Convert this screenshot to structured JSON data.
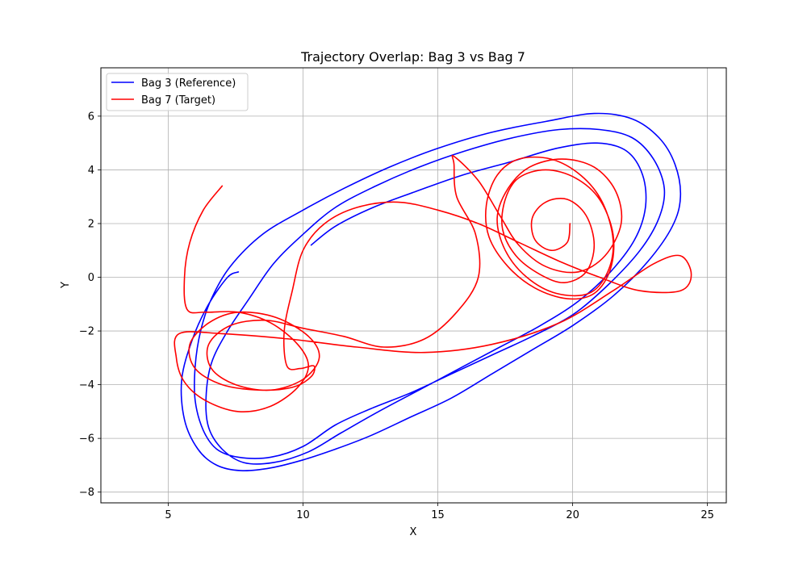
{
  "chart_data": {
    "type": "line",
    "title": "Trajectory Overlap: Bag 3 vs Bag 7",
    "xlabel": "X",
    "ylabel": "Y",
    "xlim": [
      2.5,
      25.7
    ],
    "ylim": [
      -8.4,
      7.8
    ],
    "xticks": [
      5,
      10,
      15,
      20,
      25
    ],
    "yticks": [
      -8,
      -6,
      -4,
      -2,
      0,
      2,
      4,
      6
    ],
    "xtick_labels": [
      "5",
      "10",
      "15",
      "20",
      "25"
    ],
    "ytick_labels": [
      "−8",
      "−6",
      "−4",
      "−2",
      "0",
      "2",
      "4",
      "6"
    ],
    "grid": true,
    "legend_position": "upper-left",
    "series": [
      {
        "name": "Bag 3 (Reference)",
        "color": "#0000ff",
        "points": [
          [
            7.6,
            0.2
          ],
          [
            7.2,
            0.0
          ],
          [
            6.5,
            -1.0
          ],
          [
            5.9,
            -2.3
          ],
          [
            5.5,
            -3.8
          ],
          [
            5.6,
            -5.3
          ],
          [
            6.1,
            -6.4
          ],
          [
            6.8,
            -7.0
          ],
          [
            7.7,
            -7.2
          ],
          [
            8.8,
            -7.1
          ],
          [
            10.0,
            -6.8
          ],
          [
            11.2,
            -6.4
          ],
          [
            12.5,
            -5.9
          ],
          [
            14.0,
            -5.2
          ],
          [
            15.5,
            -4.5
          ],
          [
            17.0,
            -3.6
          ],
          [
            18.5,
            -2.7
          ],
          [
            20.0,
            -1.8
          ],
          [
            21.5,
            -0.7
          ],
          [
            22.8,
            0.6
          ],
          [
            23.7,
            1.9
          ],
          [
            24.0,
            3.0
          ],
          [
            23.8,
            4.2
          ],
          [
            23.2,
            5.2
          ],
          [
            22.2,
            5.9
          ],
          [
            20.8,
            6.1
          ],
          [
            19.0,
            5.8
          ],
          [
            17.0,
            5.4
          ],
          [
            15.0,
            4.8
          ],
          [
            13.2,
            4.1
          ],
          [
            11.5,
            3.3
          ],
          [
            10.0,
            2.5
          ],
          [
            8.5,
            1.6
          ],
          [
            7.3,
            0.4
          ],
          [
            6.6,
            -0.8
          ],
          [
            6.2,
            -2.0
          ],
          [
            6.0,
            -3.3
          ],
          [
            6.0,
            -4.6
          ],
          [
            6.3,
            -5.7
          ],
          [
            6.8,
            -6.4
          ],
          [
            7.6,
            -6.7
          ],
          [
            8.8,
            -6.7
          ],
          [
            10.0,
            -6.3
          ],
          [
            11.2,
            -5.5
          ],
          [
            12.5,
            -4.9
          ],
          [
            14.0,
            -4.3
          ],
          [
            15.5,
            -3.6
          ],
          [
            17.0,
            -2.9
          ],
          [
            18.5,
            -2.2
          ],
          [
            20.0,
            -1.4
          ],
          [
            21.3,
            -0.3
          ],
          [
            22.5,
            1.0
          ],
          [
            23.2,
            2.2
          ],
          [
            23.4,
            3.3
          ],
          [
            23.0,
            4.4
          ],
          [
            22.2,
            5.2
          ],
          [
            21.0,
            5.5
          ],
          [
            19.5,
            5.5
          ],
          [
            17.8,
            5.2
          ],
          [
            16.0,
            4.7
          ],
          [
            14.3,
            4.1
          ],
          [
            12.7,
            3.4
          ],
          [
            11.2,
            2.6
          ],
          [
            10.0,
            1.6
          ],
          [
            8.9,
            0.5
          ],
          [
            8.0,
            -0.8
          ],
          [
            7.2,
            -2.0
          ],
          [
            6.6,
            -3.2
          ],
          [
            6.4,
            -4.5
          ],
          [
            6.5,
            -5.6
          ],
          [
            7.0,
            -6.4
          ],
          [
            7.8,
            -6.9
          ],
          [
            8.9,
            -6.9
          ],
          [
            10.2,
            -6.5
          ],
          [
            11.4,
            -5.8
          ],
          [
            12.8,
            -5.0
          ],
          [
            14.3,
            -4.2
          ],
          [
            15.8,
            -3.4
          ],
          [
            17.3,
            -2.6
          ],
          [
            18.8,
            -1.8
          ],
          [
            20.2,
            -0.9
          ],
          [
            21.4,
            0.2
          ],
          [
            22.3,
            1.4
          ],
          [
            22.7,
            2.6
          ],
          [
            22.6,
            3.8
          ],
          [
            22.0,
            4.7
          ],
          [
            20.9,
            5.0
          ],
          [
            19.4,
            4.8
          ],
          [
            17.7,
            4.3
          ],
          [
            15.9,
            3.8
          ],
          [
            14.2,
            3.2
          ],
          [
            12.6,
            2.6
          ],
          [
            11.2,
            1.9
          ],
          [
            10.3,
            1.2
          ]
        ]
      },
      {
        "name": "Bag 7 (Target)",
        "color": "#ff0000",
        "points": [
          [
            7.0,
            3.4
          ],
          [
            6.3,
            2.5
          ],
          [
            5.8,
            1.3
          ],
          [
            5.6,
            0.0
          ],
          [
            5.7,
            -1.2
          ],
          [
            6.4,
            -1.3
          ],
          [
            7.6,
            -1.3
          ],
          [
            8.8,
            -1.7
          ],
          [
            9.8,
            -2.5
          ],
          [
            10.2,
            -3.3
          ],
          [
            9.8,
            -4.1
          ],
          [
            8.8,
            -4.8
          ],
          [
            7.6,
            -5.0
          ],
          [
            6.4,
            -4.6
          ],
          [
            5.6,
            -3.9
          ],
          [
            5.3,
            -3.0
          ],
          [
            5.4,
            -2.1
          ],
          [
            7.0,
            -2.1
          ],
          [
            9.5,
            -2.3
          ],
          [
            12.0,
            -2.6
          ],
          [
            14.5,
            -2.8
          ],
          [
            17.0,
            -2.5
          ],
          [
            19.5,
            -1.7
          ],
          [
            21.5,
            -0.5
          ],
          [
            23.0,
            0.5
          ],
          [
            24.0,
            0.8
          ],
          [
            24.4,
            0.1
          ],
          [
            24.0,
            -0.5
          ],
          [
            22.5,
            -0.5
          ],
          [
            21.0,
            0.0
          ],
          [
            19.5,
            0.6
          ],
          [
            18.0,
            1.3
          ],
          [
            16.5,
            2.0
          ],
          [
            15.0,
            2.5
          ],
          [
            13.5,
            2.8
          ],
          [
            12.0,
            2.6
          ],
          [
            10.8,
            2.0
          ],
          [
            10.0,
            1.0
          ],
          [
            9.6,
            -0.5
          ],
          [
            9.3,
            -2.0
          ],
          [
            9.4,
            -3.3
          ],
          [
            9.9,
            -3.4
          ],
          [
            10.4,
            -3.3
          ],
          [
            10.3,
            -3.7
          ],
          [
            9.6,
            -4.1
          ],
          [
            8.4,
            -4.2
          ],
          [
            7.0,
            -4.0
          ],
          [
            6.0,
            -3.4
          ],
          [
            5.8,
            -2.5
          ],
          [
            6.5,
            -1.7
          ],
          [
            7.6,
            -1.3
          ],
          [
            9.0,
            -1.5
          ],
          [
            10.2,
            -2.2
          ],
          [
            10.6,
            -3.0
          ],
          [
            10.0,
            -3.8
          ],
          [
            8.8,
            -4.2
          ],
          [
            7.5,
            -4.0
          ],
          [
            6.6,
            -3.4
          ],
          [
            6.5,
            -2.5
          ],
          [
            7.3,
            -1.8
          ],
          [
            8.6,
            -1.6
          ],
          [
            10.0,
            -1.9
          ],
          [
            11.5,
            -2.2
          ],
          [
            13.0,
            -2.6
          ],
          [
            14.5,
            -2.3
          ],
          [
            15.7,
            -1.3
          ],
          [
            16.5,
            0.0
          ],
          [
            16.4,
            1.6
          ],
          [
            15.7,
            3.0
          ],
          [
            15.6,
            4.2
          ],
          [
            15.6,
            4.5
          ],
          [
            16.5,
            3.6
          ],
          [
            17.3,
            2.3
          ],
          [
            18.0,
            1.2
          ],
          [
            19.0,
            0.4
          ],
          [
            20.2,
            0.2
          ],
          [
            21.2,
            0.8
          ],
          [
            21.8,
            2.0
          ],
          [
            21.6,
            3.2
          ],
          [
            20.8,
            4.1
          ],
          [
            19.6,
            4.4
          ],
          [
            18.4,
            4.1
          ],
          [
            17.6,
            3.3
          ],
          [
            17.2,
            2.2
          ],
          [
            17.5,
            1.0
          ],
          [
            18.3,
            0.0
          ],
          [
            19.4,
            -0.6
          ],
          [
            20.6,
            -0.6
          ],
          [
            21.3,
            0.2
          ],
          [
            21.5,
            1.4
          ],
          [
            21.1,
            2.8
          ],
          [
            20.3,
            3.8
          ],
          [
            19.2,
            4.4
          ],
          [
            18.0,
            4.4
          ],
          [
            17.2,
            3.8
          ],
          [
            16.8,
            2.7
          ],
          [
            16.9,
            1.5
          ],
          [
            17.6,
            0.4
          ],
          [
            18.6,
            -0.4
          ],
          [
            19.8,
            -0.8
          ],
          [
            20.8,
            -0.6
          ],
          [
            21.4,
            0.3
          ],
          [
            21.5,
            1.6
          ],
          [
            21.0,
            2.9
          ],
          [
            20.1,
            3.7
          ],
          [
            19.0,
            4.0
          ],
          [
            18.0,
            3.7
          ],
          [
            17.5,
            2.9
          ],
          [
            17.4,
            1.8
          ],
          [
            17.9,
            0.8
          ],
          [
            18.8,
            0.1
          ],
          [
            19.7,
            -0.2
          ],
          [
            20.5,
            0.2
          ],
          [
            20.8,
            1.2
          ],
          [
            20.5,
            2.3
          ],
          [
            19.8,
            2.9
          ],
          [
            19.0,
            2.8
          ],
          [
            18.5,
            2.2
          ],
          [
            18.6,
            1.4
          ],
          [
            19.2,
            1.0
          ],
          [
            19.8,
            1.3
          ],
          [
            19.9,
            2.0
          ]
        ]
      }
    ]
  }
}
